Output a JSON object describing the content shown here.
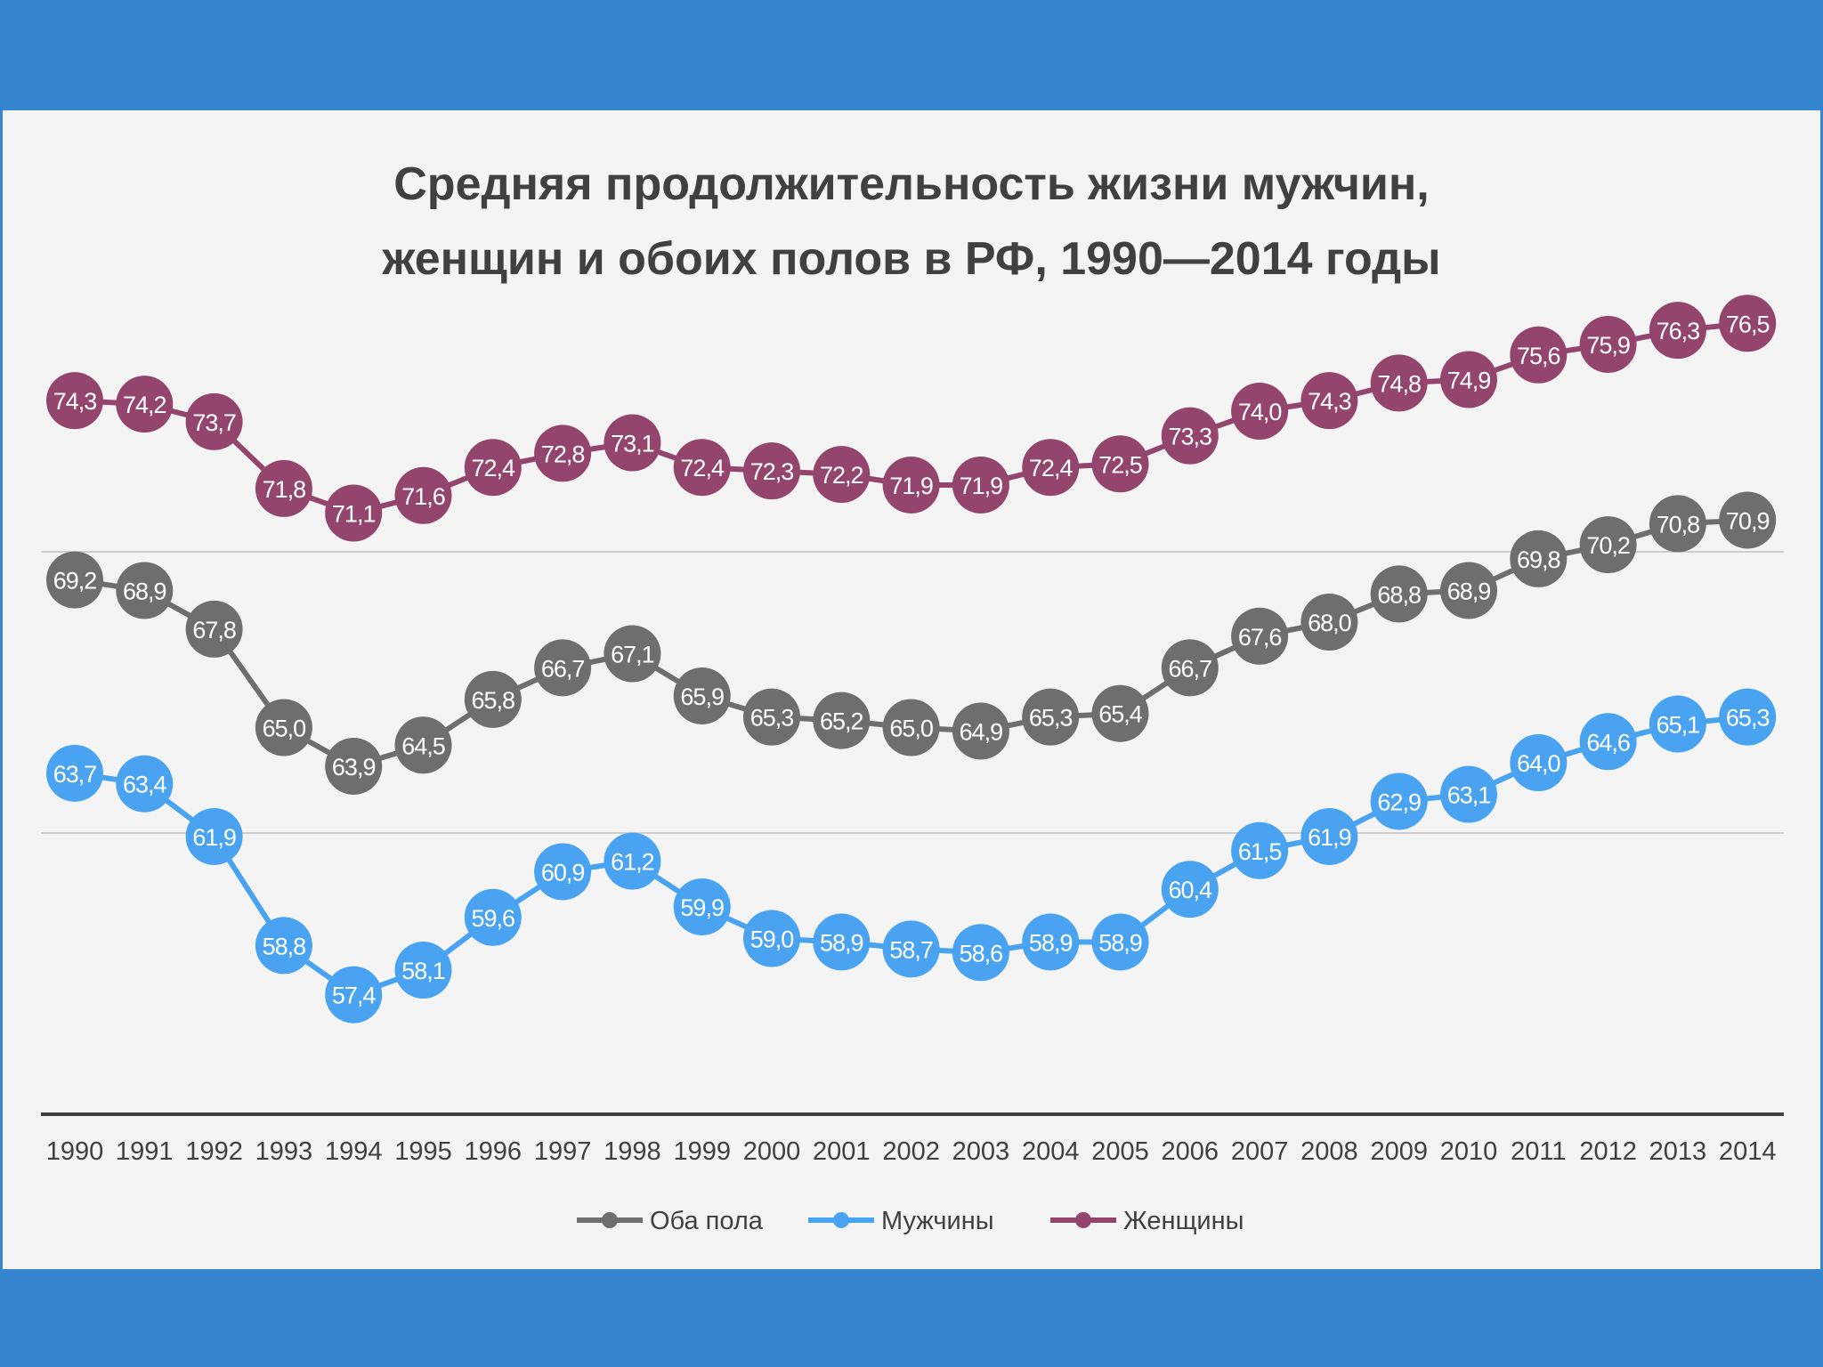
{
  "slide": {
    "band_color": "#3585d0",
    "panel_color": "#f4f4f4"
  },
  "chart_data": {
    "type": "line",
    "title_lines": [
      "Средняя продолжительность жизни мужчин,",
      "женщин и обоих полов в РФ, 1990—2014 годы"
    ],
    "xlabel": "",
    "ylabel": "",
    "grid": "horizontal",
    "legend_position": "bottom",
    "ylim": [
      54,
      78
    ],
    "gridlines_at": [
      62,
      70
    ],
    "data_labels": true,
    "label_decimal_separator": ",",
    "categories": [
      "1990",
      "1991",
      "1992",
      "1993",
      "1994",
      "1995",
      "1996",
      "1997",
      "1998",
      "1999",
      "2000",
      "2001",
      "2002",
      "2003",
      "2004",
      "2005",
      "2006",
      "2007",
      "2008",
      "2009",
      "2010",
      "2011",
      "2012",
      "2013",
      "2014"
    ],
    "series": [
      {
        "name": "Оба пола",
        "color": "#6e6e6e",
        "values": [
          69.2,
          68.9,
          67.8,
          65.0,
          63.9,
          64.5,
          65.8,
          66.7,
          67.1,
          65.9,
          65.3,
          65.2,
          65.0,
          64.9,
          65.3,
          65.4,
          66.7,
          67.6,
          68.0,
          68.8,
          68.9,
          69.8,
          70.2,
          70.8,
          70.9
        ]
      },
      {
        "name": "Мужчины",
        "color": "#4aa3f0",
        "values": [
          63.7,
          63.4,
          61.9,
          58.8,
          57.4,
          58.1,
          59.6,
          60.9,
          61.2,
          59.9,
          59.0,
          58.9,
          58.7,
          58.6,
          58.9,
          58.9,
          60.4,
          61.5,
          61.9,
          62.9,
          63.1,
          64.0,
          64.6,
          65.1,
          65.3
        ]
      },
      {
        "name": "Женщины",
        "color": "#94456e",
        "values": [
          74.3,
          74.2,
          73.7,
          71.8,
          71.1,
          71.6,
          72.4,
          72.8,
          73.1,
          72.4,
          72.3,
          72.2,
          71.9,
          71.9,
          72.4,
          72.5,
          73.3,
          74.0,
          74.3,
          74.8,
          74.9,
          75.6,
          75.9,
          76.3,
          76.5
        ]
      }
    ]
  }
}
